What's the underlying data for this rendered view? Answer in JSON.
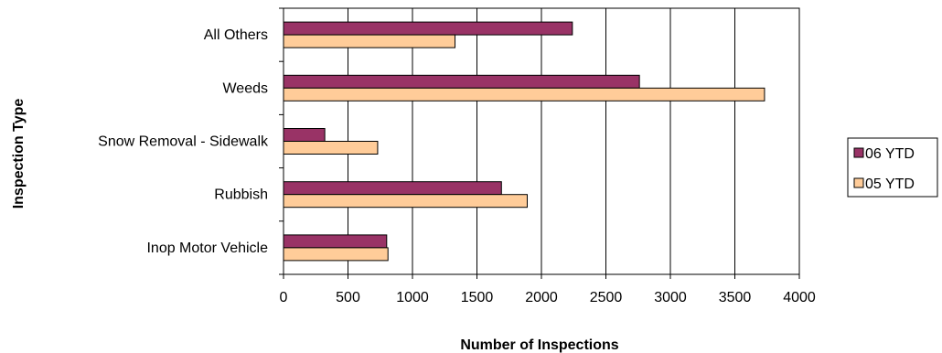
{
  "chart_data": {
    "type": "bar",
    "orientation": "horizontal",
    "categories": [
      "All Others",
      "Weeds",
      "Snow Removal - Sidewalk",
      "Rubbish",
      "Inop Motor Vehicle"
    ],
    "series": [
      {
        "name": "06 YTD",
        "values": [
          2240,
          2760,
          320,
          1690,
          800
        ],
        "color": "#993366"
      },
      {
        "name": "05 YTD",
        "values": [
          1330,
          3730,
          730,
          1890,
          810
        ],
        "color": "#FFCC99"
      }
    ],
    "xlabel": "Number of Inspections",
    "ylabel": "Inspection Type",
    "xlim": [
      0,
      4000
    ],
    "xticks": [
      "0",
      "500",
      "1000",
      "1500",
      "2000",
      "2500",
      "3000",
      "3500",
      "4000"
    ],
    "grid": "vertical",
    "legend_position": "right"
  }
}
